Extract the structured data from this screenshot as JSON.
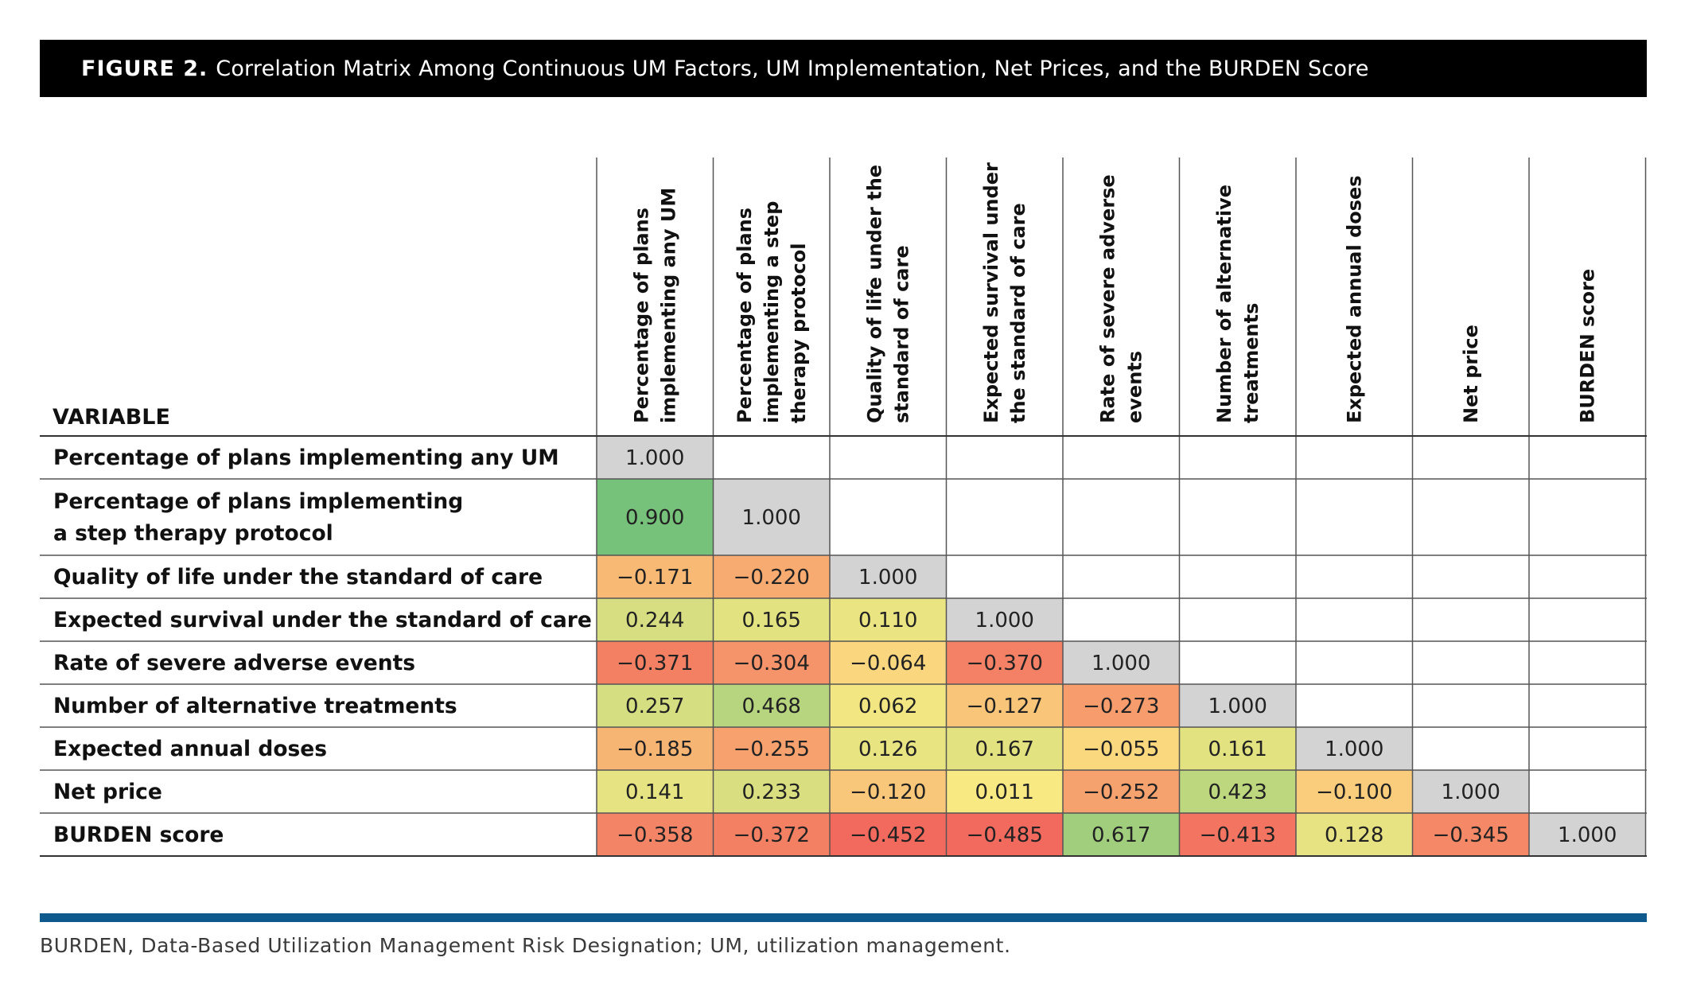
{
  "figure": {
    "label": "FIGURE 2.",
    "title": "Correlation Matrix Among Continuous UM Factors, UM Implementation, Net Prices, and the BURDEN Score"
  },
  "footnote": "BURDEN, Data-Based Utilization Management Risk Designation; UM, utilization management.",
  "colors": {
    "title_background": "#000000",
    "rule": "#0f5a8c",
    "diagonal": "#d3d3d3",
    "strong_positive": "#77c27a",
    "strong_negative": "#f26a5e",
    "neutral": "#fbe983"
  },
  "chart_data": {
    "type": "heatmap",
    "corner_label": "VARIABLE",
    "rows": [
      [
        "Percentage of plans implementing any UM"
      ],
      [
        "Percentage of plans implementing",
        "a step therapy protocol"
      ],
      [
        "Quality of life under the standard of care"
      ],
      [
        "Expected survival under the standard of care"
      ],
      [
        "Rate of severe adverse events"
      ],
      [
        "Number of alternative treatments"
      ],
      [
        "Expected annual doses"
      ],
      [
        "Net price"
      ],
      [
        "BURDEN score"
      ]
    ],
    "columns": [
      [
        "Percentage of plans",
        "implementing any UM"
      ],
      [
        "Percentage of plans",
        "implementing a step",
        "therapy protocol"
      ],
      [
        "Quality of life under the",
        "standard of care"
      ],
      [
        "Expected survival under",
        "the standard of care"
      ],
      [
        "Rate of severe adverse",
        "events"
      ],
      [
        "Number of alternative",
        "treatments"
      ],
      [
        "Expected annual doses"
      ],
      [
        "Net price"
      ],
      [
        "BURDEN score"
      ]
    ],
    "values": [
      [
        1.0
      ],
      [
        0.9,
        1.0
      ],
      [
        -0.171,
        -0.22,
        1.0
      ],
      [
        0.244,
        0.165,
        0.11,
        1.0
      ],
      [
        -0.371,
        -0.304,
        -0.064,
        -0.37,
        1.0
      ],
      [
        0.257,
        0.468,
        0.062,
        -0.127,
        -0.273,
        1.0
      ],
      [
        -0.185,
        -0.255,
        0.126,
        0.167,
        -0.055,
        0.161,
        1.0
      ],
      [
        0.141,
        0.233,
        -0.12,
        0.011,
        -0.252,
        0.423,
        -0.1,
        1.0
      ],
      [
        -0.358,
        -0.372,
        -0.452,
        -0.485,
        0.617,
        -0.413,
        0.128,
        -0.345,
        1.0
      ]
    ],
    "display": [
      [
        "1.000"
      ],
      [
        "0.900",
        "1.000"
      ],
      [
        "−0.171",
        "−0.220",
        "1.000"
      ],
      [
        "0.244",
        "0.165",
        "0.110",
        "1.000"
      ],
      [
        "−0.371",
        "−0.304",
        "−0.064",
        "−0.370",
        "1.000"
      ],
      [
        "0.257",
        "0.468",
        "0.062",
        "−0.127",
        "−0.273",
        "1.000"
      ],
      [
        "−0.185",
        "−0.255",
        "0.126",
        "0.167",
        "−0.055",
        "0.161",
        "1.000"
      ],
      [
        "0.141",
        "0.233",
        "−0.120",
        "0.011",
        "−0.252",
        "0.423",
        "−0.100",
        "1.000"
      ],
      [
        "−0.358",
        "−0.372",
        "−0.452",
        "−0.485",
        "0.617",
        "−0.413",
        "0.128",
        "−0.345",
        "1.000"
      ]
    ],
    "color_scale": "red (negative) to yellow (near zero) to green (positive); diagonal gray",
    "legend": "none"
  }
}
